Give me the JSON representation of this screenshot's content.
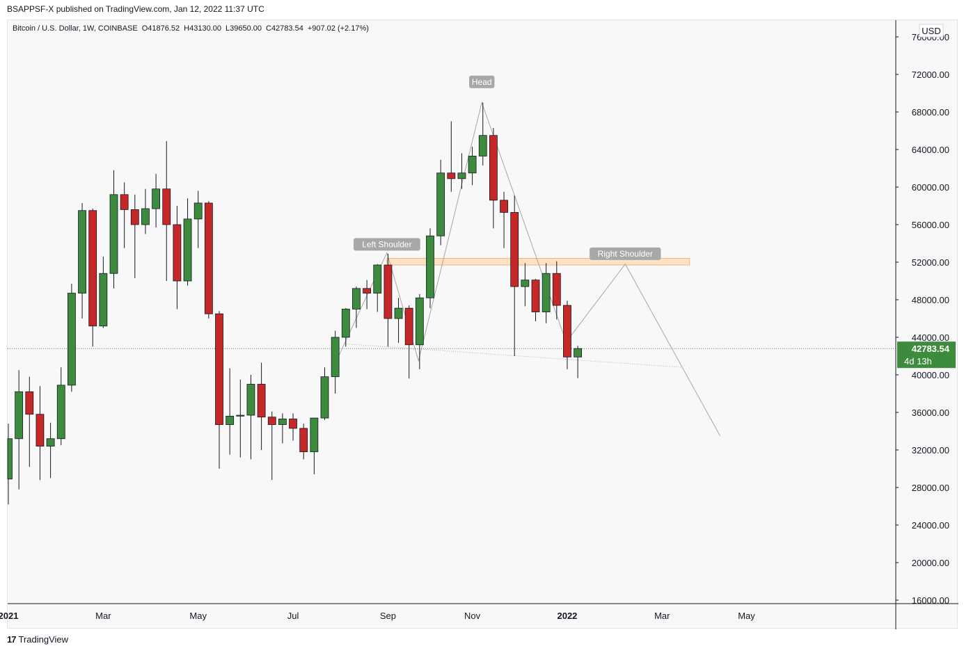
{
  "header": {
    "publisher": "BSAPPSF-X published on TradingView.com, Jan 12, 2022 11:37 UTC"
  },
  "legend": {
    "symbol": "Bitcoin / U.S. Dollar, 1W, COINBASE",
    "open": "O41876.52",
    "high": "H43130.00",
    "low": "L39650.00",
    "close": "C42783.54",
    "change": "+907.02 (+2.17%)"
  },
  "price_axis": {
    "currency": "USD",
    "last_price": "42783.54",
    "countdown": "4d 13h"
  },
  "footer": {
    "brand": "TradingView",
    "mark": "17"
  },
  "colors": {
    "up": "#3d8b3d",
    "down": "#c62828",
    "line": "#a6a6a6",
    "zone_fill": "#fde2c4",
    "zone_stroke": "#f0b27a",
    "label_bg": "#a8a8a8",
    "price_tag": "#3d8b3d"
  },
  "chart_data": {
    "type": "candlestick",
    "interval": "1W",
    "ylim": [
      16000,
      76000
    ],
    "y_ticks": [
      16000,
      20000,
      24000,
      28000,
      32000,
      36000,
      40000,
      44000,
      48000,
      52000,
      56000,
      60000,
      64000,
      68000,
      72000,
      76000
    ],
    "y_tick_labels": [
      "16000.00",
      "20000.00",
      "24000.00",
      "28000.00",
      "32000.00",
      "36000.00",
      "40000.00",
      "44000.00",
      "48000.00",
      "52000.00",
      "56000.00",
      "60000.00",
      "64000.00",
      "68000.00",
      "72000.00",
      "76000.00"
    ],
    "x_ticks": [
      {
        "label": "2021",
        "week": 0,
        "bold": true
      },
      {
        "label": "Mar",
        "week": 9,
        "bold": false
      },
      {
        "label": "May",
        "week": 18,
        "bold": false
      },
      {
        "label": "Jul",
        "week": 27,
        "bold": false
      },
      {
        "label": "Sep",
        "week": 36,
        "bold": false
      },
      {
        "label": "Nov",
        "week": 44,
        "bold": false
      },
      {
        "label": "2022",
        "week": 53,
        "bold": true
      },
      {
        "label": "Mar",
        "week": 62,
        "bold": false
      },
      {
        "label": "May",
        "week": 70,
        "bold": false
      }
    ],
    "candles": [
      {
        "o": 28900,
        "h": 34800,
        "l": 26200,
        "c": 33200
      },
      {
        "o": 33200,
        "h": 40500,
        "l": 27800,
        "c": 38200
      },
      {
        "o": 38200,
        "h": 39800,
        "l": 30200,
        "c": 35800
      },
      {
        "o": 35800,
        "h": 38800,
        "l": 28800,
        "c": 32400
      },
      {
        "o": 32400,
        "h": 34900,
        "l": 29000,
        "c": 33200
      },
      {
        "o": 33200,
        "h": 40800,
        "l": 32500,
        "c": 38900
      },
      {
        "o": 38900,
        "h": 49700,
        "l": 38200,
        "c": 48700
      },
      {
        "o": 48700,
        "h": 58300,
        "l": 46000,
        "c": 57500
      },
      {
        "o": 57500,
        "h": 57700,
        "l": 43000,
        "c": 45200
      },
      {
        "o": 45200,
        "h": 52600,
        "l": 45000,
        "c": 50800
      },
      {
        "o": 50800,
        "h": 61800,
        "l": 49200,
        "c": 59200
      },
      {
        "o": 59200,
        "h": 60500,
        "l": 53500,
        "c": 57600
      },
      {
        "o": 57600,
        "h": 59200,
        "l": 50300,
        "c": 56000
      },
      {
        "o": 56000,
        "h": 59800,
        "l": 55000,
        "c": 57700
      },
      {
        "o": 57700,
        "h": 61400,
        "l": 55700,
        "c": 59800
      },
      {
        "o": 59800,
        "h": 64900,
        "l": 50000,
        "c": 56000
      },
      {
        "o": 56000,
        "h": 58000,
        "l": 47000,
        "c": 50000
      },
      {
        "o": 50000,
        "h": 58800,
        "l": 49500,
        "c": 56600
      },
      {
        "o": 56600,
        "h": 59600,
        "l": 53500,
        "c": 58300
      },
      {
        "o": 58300,
        "h": 58500,
        "l": 46000,
        "c": 46500
      },
      {
        "o": 46500,
        "h": 46800,
        "l": 30000,
        "c": 34700
      },
      {
        "o": 34700,
        "h": 40700,
        "l": 31500,
        "c": 35600
      },
      {
        "o": 35600,
        "h": 39500,
        "l": 31200,
        "c": 35700
      },
      {
        "o": 35700,
        "h": 40000,
        "l": 31000,
        "c": 39000
      },
      {
        "o": 39000,
        "h": 41300,
        "l": 32000,
        "c": 35500
      },
      {
        "o": 35500,
        "h": 36100,
        "l": 28800,
        "c": 34700
      },
      {
        "o": 34700,
        "h": 35900,
        "l": 32700,
        "c": 35300
      },
      {
        "o": 35300,
        "h": 35900,
        "l": 33000,
        "c": 34300
      },
      {
        "o": 34300,
        "h": 34800,
        "l": 31000,
        "c": 31800
      },
      {
        "o": 31800,
        "h": 35400,
        "l": 29400,
        "c": 35400
      },
      {
        "o": 35400,
        "h": 40800,
        "l": 35200,
        "c": 39800
      },
      {
        "o": 39800,
        "h": 44700,
        "l": 38000,
        "c": 44000
      },
      {
        "o": 44000,
        "h": 47100,
        "l": 43000,
        "c": 47000
      },
      {
        "o": 47000,
        "h": 49400,
        "l": 45000,
        "c": 49200
      },
      {
        "o": 49200,
        "h": 50100,
        "l": 47000,
        "c": 48700
      },
      {
        "o": 48700,
        "h": 51800,
        "l": 46700,
        "c": 51700
      },
      {
        "o": 51700,
        "h": 52900,
        "l": 43000,
        "c": 46000
      },
      {
        "o": 46000,
        "h": 48200,
        "l": 43400,
        "c": 47100
      },
      {
        "o": 47100,
        "h": 47400,
        "l": 39600,
        "c": 43200
      },
      {
        "o": 43200,
        "h": 48600,
        "l": 40600,
        "c": 48200
      },
      {
        "o": 48200,
        "h": 55600,
        "l": 47100,
        "c": 54800
      },
      {
        "o": 54800,
        "h": 62900,
        "l": 53800,
        "c": 61500
      },
      {
        "o": 61500,
        "h": 67000,
        "l": 59500,
        "c": 60900
      },
      {
        "o": 60900,
        "h": 63600,
        "l": 59800,
        "c": 61500
      },
      {
        "o": 61500,
        "h": 64300,
        "l": 60200,
        "c": 63300
      },
      {
        "o": 63300,
        "h": 69000,
        "l": 62300,
        "c": 65500
      },
      {
        "o": 65500,
        "h": 66300,
        "l": 55600,
        "c": 58600
      },
      {
        "o": 58600,
        "h": 59500,
        "l": 53500,
        "c": 57300
      },
      {
        "o": 57300,
        "h": 59100,
        "l": 42000,
        "c": 49400
      },
      {
        "o": 49400,
        "h": 51900,
        "l": 47300,
        "c": 50100
      },
      {
        "o": 50100,
        "h": 50200,
        "l": 45700,
        "c": 46700
      },
      {
        "o": 46700,
        "h": 51900,
        "l": 45500,
        "c": 50800
      },
      {
        "o": 50800,
        "h": 52100,
        "l": 45900,
        "c": 47400
      },
      {
        "o": 47400,
        "h": 47900,
        "l": 40600,
        "c": 41900
      },
      {
        "o": 41900,
        "h": 43100,
        "l": 39650,
        "c": 42800
      }
    ],
    "annotations": {
      "labels": [
        {
          "text": "Left Shoulder",
          "week": 35.9,
          "price": 53900
        },
        {
          "text": "Head",
          "week": 44.9,
          "price": 71200
        },
        {
          "text": "Right Shoulder",
          "week": 58.5,
          "price": 52900
        }
      ],
      "zone": {
        "week_start": 35.9,
        "week_end": 64.6,
        "price_low": 51700,
        "price_high": 52400
      },
      "pattern_path": [
        {
          "week": 30.7,
          "price": 40500
        },
        {
          "week": 35.9,
          "price": 53000
        },
        {
          "week": 38.9,
          "price": 41500
        },
        {
          "week": 44.9,
          "price": 69000
        },
        {
          "week": 52.9,
          "price": 43500
        },
        {
          "week": 58.5,
          "price": 51800
        },
        {
          "week": 67.5,
          "price": 33500
        }
      ],
      "neckline": [
        {
          "week": 31.9,
          "price": 43300
        },
        {
          "week": 63.9,
          "price": 40800
        }
      ]
    }
  }
}
